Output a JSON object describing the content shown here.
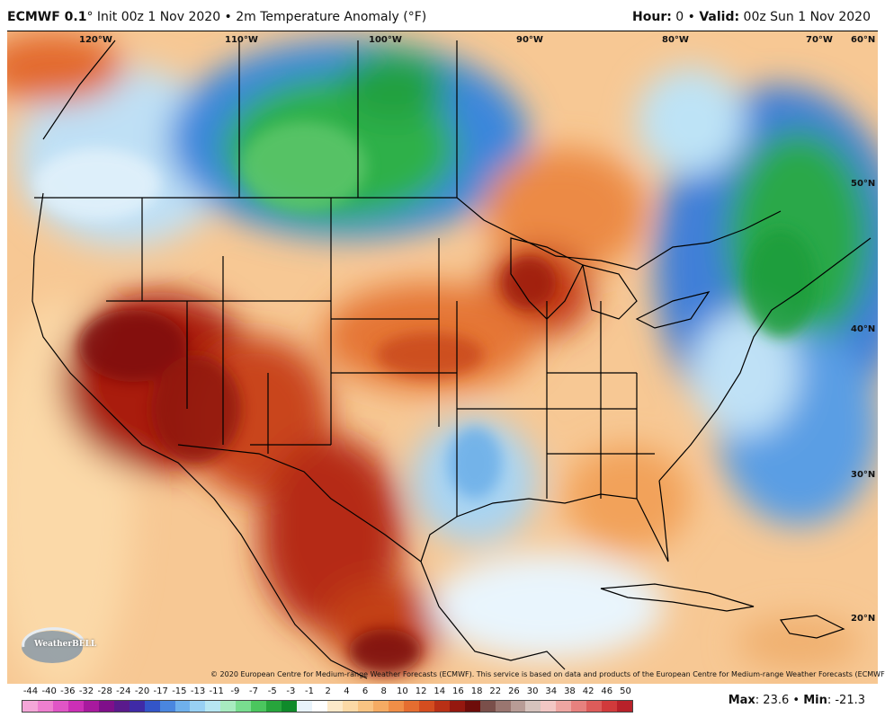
{
  "header": {
    "model": "ECMWF 0.1",
    "degree": "°",
    "init": " Init 00z 1 Nov 2020 • 2m Temperature Anomaly (°F)",
    "hour_label": "Hour:",
    "hour_value": " 0 • ",
    "valid_label": "Valid:",
    "valid_value": " 00z Sun 1 Nov 2020"
  },
  "map": {
    "lon_labels": [
      "120°W",
      "110°W",
      "100°W",
      "90°W",
      "80°W",
      "70°W"
    ],
    "lat_labels": [
      "60°N",
      "50°N",
      "40°N",
      "30°N",
      "20°N"
    ]
  },
  "copyright": "© 2020 European Centre for Medium-range Weather Forecasts (ECMWF). This service is based on data and products of the European Centre for Medium-range Weather Forecasts (ECMWF).",
  "logo_text": "WeatherBELL",
  "colorbar": {
    "labels": [
      "-44",
      "-40",
      "-36",
      "-32",
      "-28",
      "-24",
      "-20",
      "-17",
      "-15",
      "-13",
      "-11",
      "-9",
      "-7",
      "-5",
      "-3",
      "-1",
      "2",
      "4",
      "6",
      "8",
      "10",
      "12",
      "14",
      "16",
      "18",
      "22",
      "26",
      "30",
      "34",
      "38",
      "42",
      "46",
      "50"
    ],
    "colors": [
      "#f4a6d8",
      "#ee7fcf",
      "#e055c6",
      "#cc2fb6",
      "#a8199e",
      "#7f0f8a",
      "#5a1a8c",
      "#3f2aa6",
      "#3355c8",
      "#4a86df",
      "#6fb0ec",
      "#98d0f4",
      "#b7e6f2",
      "#a8ebc0",
      "#79dd8f",
      "#4bc65e",
      "#27a53c",
      "#0f8a2a",
      "#e8f3fb",
      "#ffffff",
      "#fde9c9",
      "#fcd9a6",
      "#f9c483",
      "#f5ab63",
      "#f08e47",
      "#e56d30",
      "#d44d1f",
      "#b93016",
      "#95180f",
      "#6e0d0a",
      "#7a4f4a",
      "#9a7670",
      "#b89c96",
      "#d6c3bd",
      "#f2c7c4",
      "#eea6a2",
      "#e7817e",
      "#dd5c5a",
      "#d13a3b",
      "#b8212a"
    ]
  },
  "stats": {
    "max_label": "Max",
    "max_value": ": 23.6 • ",
    "min_label": "Min",
    "min_value": ": -21.3"
  }
}
